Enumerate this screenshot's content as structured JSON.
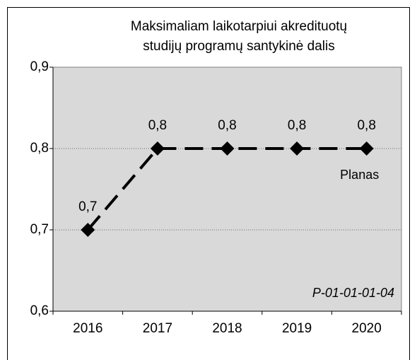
{
  "chart_data": {
    "type": "line",
    "title": [
      "Maksimaliam laikotarpiui akredituotų",
      "studijų programų santykinė dalis"
    ],
    "categories": [
      "2016",
      "2017",
      "2018",
      "2019",
      "2020"
    ],
    "series": [
      {
        "name": "Planas",
        "color": "#000000",
        "values": [
          0.7,
          0.8,
          0.8,
          0.8,
          0.8
        ],
        "value_labels": [
          "0,7",
          "0,8",
          "0,8",
          "0,8",
          "0,8"
        ]
      }
    ],
    "ylim": [
      0.6,
      0.9
    ],
    "yticks": [
      {
        "value": 0.6,
        "label": "0,6"
      },
      {
        "value": 0.7,
        "label": "0,7"
      },
      {
        "value": 0.8,
        "label": "0,8"
      },
      {
        "value": 0.9,
        "label": "0,9"
      }
    ],
    "grid": true,
    "annotations": [
      "P-01-01-01-04"
    ]
  }
}
